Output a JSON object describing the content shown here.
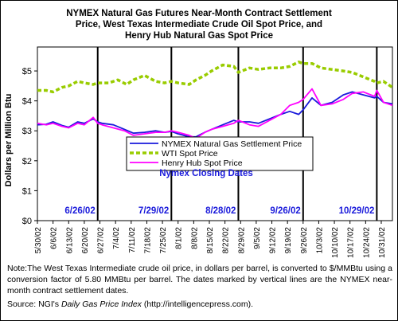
{
  "chart_data": {
    "type": "line",
    "title_lines": [
      "NYMEX Natural Gas Futures Near-Month Contract Settlement",
      "Price, West Texas Intermediate Crude Oil Spot Price, and",
      "Henry Hub Natural Gas Spot Price"
    ],
    "xlabel": "",
    "ylabel": "Dollars per Million Btu",
    "ylim": [
      0,
      5.8
    ],
    "yticks": [
      "$0",
      "$1",
      "$2",
      "$3",
      "$4",
      "$5"
    ],
    "yticks_values": [
      0,
      1,
      2,
      3,
      4,
      5
    ],
    "x_tick_labels": [
      "5/30/02",
      "6/6/02",
      "6/13/02",
      "6/20/02",
      "6/27/02",
      "7/4/02",
      "7/11/02",
      "7/18/02",
      "7/25/02",
      "8/1/02",
      "8/8/02",
      "8/15/02",
      "8/22/02",
      "8/29/02",
      "9/5/02",
      "9/12/02",
      "9/19/02",
      "9/26/02",
      "10/3/02",
      "10/10/02",
      "10/17/02",
      "10/24/02",
      "10/31/02"
    ],
    "x_start": "2002-05-30",
    "x_end": "2002-11-05",
    "grid": false,
    "legend_position": "center",
    "series": [
      {
        "name": "NYMEX Natural Gas Settlement Price",
        "color": "#1a1adb",
        "points": [
          [
            "2002-05-30",
            3.2
          ],
          [
            "2002-06-03",
            3.22
          ],
          [
            "2002-06-06",
            3.3
          ],
          [
            "2002-06-10",
            3.18
          ],
          [
            "2002-06-13",
            3.12
          ],
          [
            "2002-06-17",
            3.3
          ],
          [
            "2002-06-20",
            3.25
          ],
          [
            "2002-06-24",
            3.4
          ],
          [
            "2002-06-26",
            3.3
          ],
          [
            "2002-06-28",
            3.25
          ],
          [
            "2002-07-03",
            3.2
          ],
          [
            "2002-07-08",
            3.05
          ],
          [
            "2002-07-12",
            2.92
          ],
          [
            "2002-07-17",
            2.95
          ],
          [
            "2002-07-22",
            3.0
          ],
          [
            "2002-07-26",
            2.95
          ],
          [
            "2002-07-29",
            2.98
          ],
          [
            "2002-08-01",
            2.9
          ],
          [
            "2002-08-06",
            2.8
          ],
          [
            "2002-08-09",
            2.8
          ],
          [
            "2002-08-13",
            2.95
          ],
          [
            "2002-08-16",
            3.05
          ],
          [
            "2002-08-21",
            3.2
          ],
          [
            "2002-08-26",
            3.35
          ],
          [
            "2002-08-28",
            3.3
          ],
          [
            "2002-09-02",
            3.3
          ],
          [
            "2002-09-06",
            3.25
          ],
          [
            "2002-09-11",
            3.4
          ],
          [
            "2002-09-16",
            3.55
          ],
          [
            "2002-09-20",
            3.65
          ],
          [
            "2002-09-24",
            3.55
          ],
          [
            "2002-09-26",
            3.7
          ],
          [
            "2002-09-30",
            4.1
          ],
          [
            "2002-10-04",
            3.85
          ],
          [
            "2002-10-09",
            3.95
          ],
          [
            "2002-10-14",
            4.2
          ],
          [
            "2002-10-18",
            4.3
          ],
          [
            "2002-10-23",
            4.2
          ],
          [
            "2002-10-28",
            4.1
          ],
          [
            "2002-10-29",
            4.15
          ],
          [
            "2002-11-01",
            3.95
          ],
          [
            "2002-11-05",
            3.9
          ]
        ]
      },
      {
        "name": "WTI Spot Price",
        "color": "#99cc00",
        "points": [
          [
            "2002-05-30",
            4.35
          ],
          [
            "2002-06-03",
            4.35
          ],
          [
            "2002-06-06",
            4.3
          ],
          [
            "2002-06-10",
            4.45
          ],
          [
            "2002-06-13",
            4.5
          ],
          [
            "2002-06-17",
            4.65
          ],
          [
            "2002-06-20",
            4.6
          ],
          [
            "2002-06-24",
            4.55
          ],
          [
            "2002-06-26",
            4.6
          ],
          [
            "2002-07-01",
            4.6
          ],
          [
            "2002-07-05",
            4.7
          ],
          [
            "2002-07-09",
            4.55
          ],
          [
            "2002-07-12",
            4.7
          ],
          [
            "2002-07-17",
            4.85
          ],
          [
            "2002-07-22",
            4.65
          ],
          [
            "2002-07-26",
            4.6
          ],
          [
            "2002-07-29",
            4.65
          ],
          [
            "2002-08-01",
            4.6
          ],
          [
            "2002-08-06",
            4.55
          ],
          [
            "2002-08-09",
            4.7
          ],
          [
            "2002-08-13",
            4.85
          ],
          [
            "2002-08-16",
            5.0
          ],
          [
            "2002-08-21",
            5.2
          ],
          [
            "2002-08-26",
            5.15
          ],
          [
            "2002-08-28",
            4.95
          ],
          [
            "2002-09-02",
            5.1
          ],
          [
            "2002-09-06",
            5.05
          ],
          [
            "2002-09-11",
            5.1
          ],
          [
            "2002-09-16",
            5.1
          ],
          [
            "2002-09-20",
            5.15
          ],
          [
            "2002-09-24",
            5.3
          ],
          [
            "2002-09-26",
            5.25
          ],
          [
            "2002-09-30",
            5.25
          ],
          [
            "2002-10-04",
            5.1
          ],
          [
            "2002-10-09",
            5.05
          ],
          [
            "2002-10-14",
            5.0
          ],
          [
            "2002-10-18",
            4.95
          ],
          [
            "2002-10-23",
            4.8
          ],
          [
            "2002-10-28",
            4.65
          ],
          [
            "2002-10-29",
            4.6
          ],
          [
            "2002-11-01",
            4.65
          ],
          [
            "2002-11-05",
            4.45
          ]
        ]
      },
      {
        "name": "Henry Hub Spot Price",
        "color": "#ff00ff",
        "points": [
          [
            "2002-05-30",
            3.25
          ],
          [
            "2002-06-03",
            3.2
          ],
          [
            "2002-06-06",
            3.25
          ],
          [
            "2002-06-10",
            3.15
          ],
          [
            "2002-06-13",
            3.1
          ],
          [
            "2002-06-17",
            3.25
          ],
          [
            "2002-06-20",
            3.2
          ],
          [
            "2002-06-24",
            3.45
          ],
          [
            "2002-06-26",
            3.25
          ],
          [
            "2002-06-28",
            3.2
          ],
          [
            "2002-07-03",
            3.1
          ],
          [
            "2002-07-08",
            3.0
          ],
          [
            "2002-07-12",
            2.85
          ],
          [
            "2002-07-17",
            2.9
          ],
          [
            "2002-07-22",
            2.95
          ],
          [
            "2002-07-26",
            2.95
          ],
          [
            "2002-07-29",
            3.0
          ],
          [
            "2002-08-01",
            2.95
          ],
          [
            "2002-08-06",
            2.85
          ],
          [
            "2002-08-09",
            2.75
          ],
          [
            "2002-08-13",
            2.95
          ],
          [
            "2002-08-16",
            3.05
          ],
          [
            "2002-08-21",
            3.15
          ],
          [
            "2002-08-26",
            3.25
          ],
          [
            "2002-08-28",
            3.35
          ],
          [
            "2002-09-02",
            3.2
          ],
          [
            "2002-09-06",
            3.15
          ],
          [
            "2002-09-11",
            3.35
          ],
          [
            "2002-09-16",
            3.55
          ],
          [
            "2002-09-20",
            3.85
          ],
          [
            "2002-09-24",
            3.95
          ],
          [
            "2002-09-26",
            4.05
          ],
          [
            "2002-09-30",
            4.4
          ],
          [
            "2002-10-04",
            3.85
          ],
          [
            "2002-10-09",
            3.9
          ],
          [
            "2002-10-14",
            4.05
          ],
          [
            "2002-10-18",
            4.25
          ],
          [
            "2002-10-23",
            4.3
          ],
          [
            "2002-10-28",
            4.15
          ],
          [
            "2002-10-29",
            4.35
          ],
          [
            "2002-11-01",
            3.95
          ],
          [
            "2002-11-05",
            3.85
          ]
        ]
      }
    ],
    "closing_dates": {
      "label": "Nymex Closing Dates",
      "dates": [
        {
          "date": "2002-06-26",
          "label": "6/26/02"
        },
        {
          "date": "2002-07-29",
          "label": "7/29/02"
        },
        {
          "date": "2002-08-28",
          "label": "8/28/02"
        },
        {
          "date": "2002-09-26",
          "label": "9/26/02"
        },
        {
          "date": "2002-10-29",
          "label": "10/29/02"
        }
      ]
    }
  },
  "footer": {
    "note": "Note:The West Texas Intermediate crude oil price, in dollars per barrel,  is converted to $/MMBtu using a conversion factor of 5.80 MMBtu per barrel.  The dates marked by vertical lines are the NYMEX near-month contract settlement dates.",
    "source_prefix": "Source:  NGI's ",
    "source_title": "Daily Gas Price Index",
    "source_suffix": " (http://intelligencepress.com)."
  }
}
